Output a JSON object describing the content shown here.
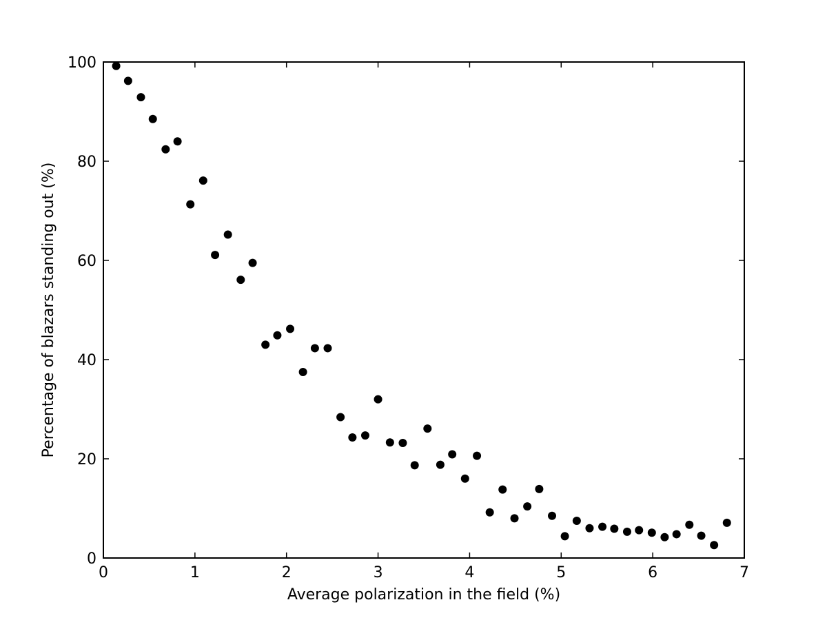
{
  "chart_data": {
    "type": "scatter",
    "title": "",
    "xlabel": "Average polarization in the field (%)",
    "ylabel": "Percentage of blazars standing out (%)",
    "xlim": [
      0,
      7
    ],
    "ylim": [
      0,
      100
    ],
    "xticks": [
      0,
      1,
      2,
      3,
      4,
      5,
      6,
      7
    ],
    "yticks": [
      0,
      20,
      40,
      60,
      80,
      100
    ],
    "xtick_labels": [
      "0",
      "1",
      "2",
      "3",
      "4",
      "5",
      "6",
      "7"
    ],
    "ytick_labels": [
      "0",
      "20",
      "40",
      "60",
      "80",
      "100"
    ],
    "grid": false,
    "marker_color": "#000000",
    "series": [
      {
        "points": [
          [
            0.14,
            99.2
          ],
          [
            0.27,
            96.2
          ],
          [
            0.41,
            92.9
          ],
          [
            0.54,
            88.5
          ],
          [
            0.68,
            82.4
          ],
          [
            0.81,
            84.0
          ],
          [
            0.95,
            71.3
          ],
          [
            1.09,
            76.1
          ],
          [
            1.22,
            61.1
          ],
          [
            1.36,
            65.2
          ],
          [
            1.5,
            56.1
          ],
          [
            1.63,
            59.5
          ],
          [
            1.77,
            43.0
          ],
          [
            1.9,
            44.9
          ],
          [
            2.04,
            46.2
          ],
          [
            2.18,
            37.5
          ],
          [
            2.31,
            42.3
          ],
          [
            2.45,
            42.3
          ],
          [
            2.59,
            28.4
          ],
          [
            2.72,
            24.3
          ],
          [
            2.86,
            24.7
          ],
          [
            3.0,
            32.0
          ],
          [
            3.13,
            23.3
          ],
          [
            3.27,
            23.2
          ],
          [
            3.4,
            18.7
          ],
          [
            3.54,
            26.1
          ],
          [
            3.68,
            18.8
          ],
          [
            3.81,
            20.9
          ],
          [
            3.95,
            16.0
          ],
          [
            4.08,
            20.6
          ],
          [
            4.22,
            9.2
          ],
          [
            4.36,
            13.8
          ],
          [
            4.49,
            8.0
          ],
          [
            4.63,
            10.4
          ],
          [
            4.76,
            13.9
          ],
          [
            4.9,
            8.5
          ],
          [
            5.04,
            4.4
          ],
          [
            5.17,
            7.5
          ],
          [
            5.31,
            6.0
          ],
          [
            5.45,
            6.3
          ],
          [
            5.58,
            5.9
          ],
          [
            5.72,
            5.3
          ],
          [
            5.85,
            5.6
          ],
          [
            5.99,
            5.1
          ],
          [
            6.13,
            4.2
          ],
          [
            6.26,
            4.8
          ],
          [
            6.4,
            6.7
          ],
          [
            6.53,
            4.5
          ],
          [
            6.67,
            2.6
          ],
          [
            6.81,
            7.1
          ]
        ]
      }
    ]
  }
}
